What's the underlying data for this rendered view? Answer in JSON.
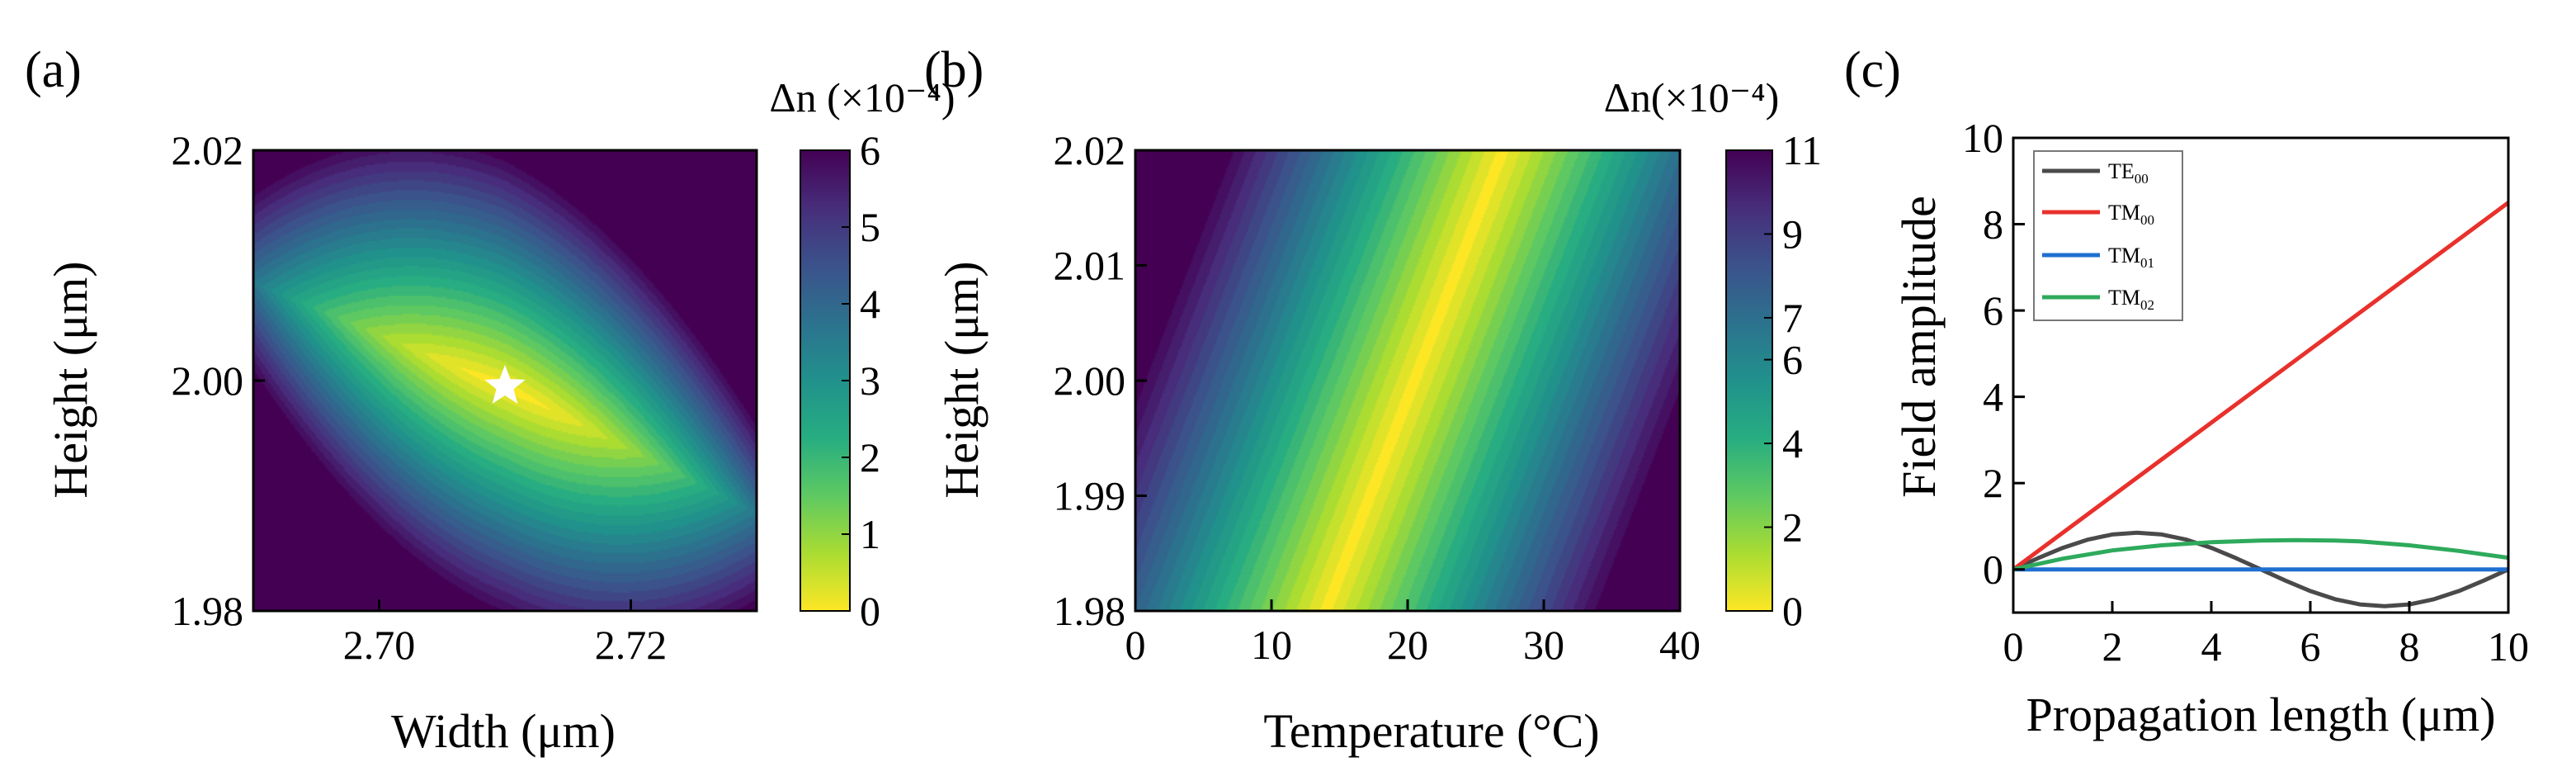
{
  "chart_data": [
    {
      "panel_label": "(a)",
      "type": "heatmap",
      "xlabel": "Width (μm)",
      "ylabel": "Height (μm)",
      "xlim": [
        2.69,
        2.73
      ],
      "ylim": [
        1.98,
        2.02
      ],
      "xticks": [
        "2.70",
        "2.72"
      ],
      "xtick_values": [
        2.7,
        2.72
      ],
      "yticks": [
        "1.98",
        "2.00",
        "2.02"
      ],
      "ytick_values": [
        1.98,
        2.0,
        2.02
      ],
      "colorbar": {
        "title": "Δn (×10⁻⁴)",
        "range": [
          0,
          6
        ],
        "ticks": [
          "0",
          "1",
          "2",
          "3",
          "4",
          "5",
          "6"
        ],
        "tick_values": [
          0,
          1,
          2,
          3,
          4,
          5,
          6
        ]
      },
      "field": {
        "description": "Δn minimum valley running from upper-left to lower-right",
        "min_line": [
          [
            2.69,
            2.0085
          ],
          [
            2.71,
            1.9995
          ],
          [
            2.73,
            1.9885
          ]
        ],
        "slope_x": 100,
        "slope_y": 300,
        "max_value": 6
      },
      "marker": {
        "symbol": "star",
        "x": 2.71,
        "y": 1.9995
      }
    },
    {
      "panel_label": "(b)",
      "type": "heatmap",
      "xlabel": "Temperature (°C)",
      "ylabel": "Height (μm)",
      "xlim": [
        0,
        40
      ],
      "ylim": [
        1.98,
        2.02
      ],
      "xticks": [
        "0",
        "10",
        "20",
        "30",
        "40"
      ],
      "xtick_values": [
        0,
        10,
        20,
        30,
        40
      ],
      "yticks": [
        "1.98",
        "1.99",
        "2.00",
        "2.01",
        "2.02"
      ],
      "ytick_values": [
        1.98,
        1.99,
        2.0,
        2.01,
        2.02
      ],
      "colorbar": {
        "title": "Δn(×10⁻⁴)",
        "range": [
          0,
          11
        ],
        "ticks": [
          "0",
          "2",
          "4",
          "6",
          "7",
          "9",
          "11"
        ],
        "tick_values": [
          0,
          2,
          4,
          6,
          7,
          9,
          11
        ]
      },
      "field": {
        "description": "Δn minimum band running from lower-left to upper-right",
        "min_line": [
          [
            14,
            1.98
          ],
          [
            20.5,
            2.0
          ],
          [
            27,
            2.02
          ]
        ],
        "slope_x": 0.52,
        "max_value": 11
      }
    },
    {
      "panel_label": "(c)",
      "type": "line",
      "xlabel": "Propagation length (μm)",
      "ylabel": "Field amplitude",
      "xlim": [
        0,
        10
      ],
      "ylim": [
        -1,
        10
      ],
      "xticks": [
        "0",
        "2",
        "4",
        "6",
        "8",
        "10"
      ],
      "xtick_values": [
        0,
        2,
        4,
        6,
        8,
        10
      ],
      "yticks": [
        "0",
        "2",
        "4",
        "6",
        "8",
        "10"
      ],
      "ytick_values": [
        0,
        2,
        4,
        6,
        8,
        10
      ],
      "legend_position": "top-left",
      "series": [
        {
          "name": "TE",
          "subscript": "00",
          "color": "#4a4a4a",
          "x": [
            0,
            0.5,
            1,
            1.5,
            2,
            2.5,
            3,
            3.5,
            4,
            4.5,
            5,
            5.5,
            6,
            6.5,
            7,
            7.5,
            8,
            8.5,
            9,
            9.5,
            10
          ],
          "values": [
            0,
            0.26,
            0.5,
            0.69,
            0.81,
            0.85,
            0.81,
            0.69,
            0.5,
            0.26,
            0.0,
            -0.26,
            -0.5,
            -0.69,
            -0.81,
            -0.85,
            -0.81,
            -0.69,
            -0.5,
            -0.26,
            0.0
          ]
        },
        {
          "name": "TM",
          "subscript": "00",
          "color": "#e8312c",
          "x": [
            0,
            10
          ],
          "values": [
            0,
            8.5
          ]
        },
        {
          "name": "TM",
          "subscript": "01",
          "color": "#1f6fd1",
          "x": [
            0,
            10
          ],
          "values": [
            0,
            0
          ]
        },
        {
          "name": "TM",
          "subscript": "02",
          "color": "#2eaa5c",
          "x": [
            0,
            1,
            2,
            3,
            4,
            5,
            5.7,
            6.5,
            7,
            8,
            9,
            10
          ],
          "values": [
            0,
            0.25,
            0.44,
            0.56,
            0.63,
            0.67,
            0.68,
            0.67,
            0.65,
            0.56,
            0.43,
            0.27
          ]
        }
      ]
    }
  ]
}
